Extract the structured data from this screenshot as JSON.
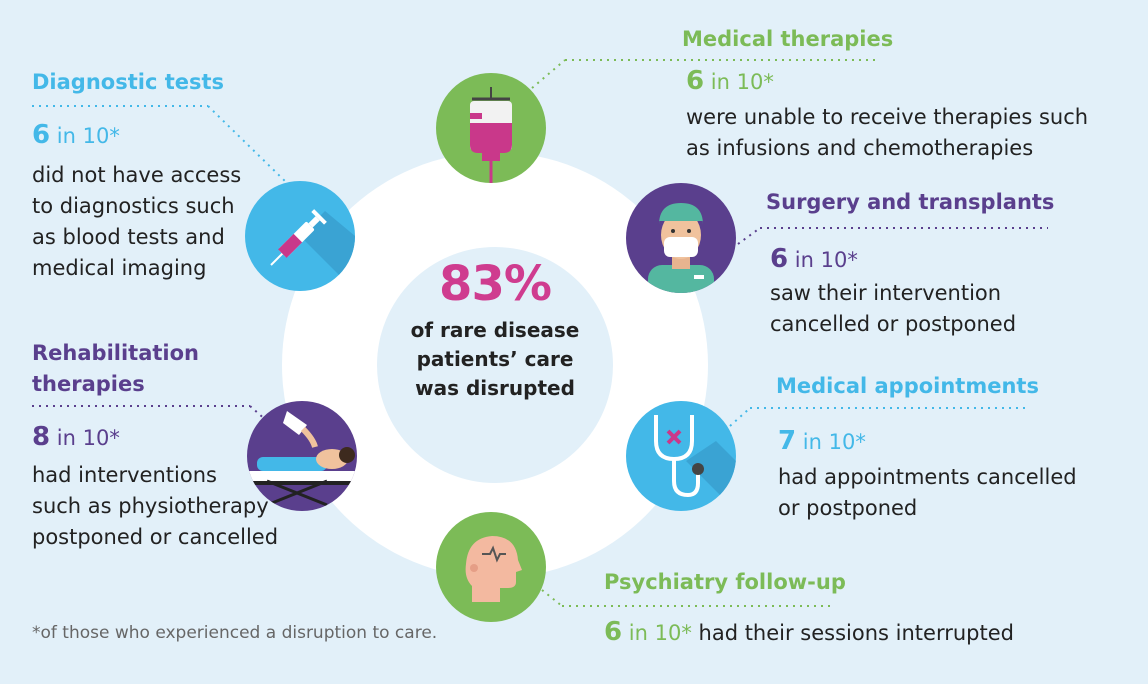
{
  "center": {
    "percent": "83%",
    "line1": "of rare disease",
    "line2": "patients’ care",
    "line3": "was disrupted"
  },
  "sections": {
    "diagnostic": {
      "title": "Diagnostic tests",
      "num": "6",
      "suffix": "in 10*",
      "lines": [
        "did not have access",
        "to diagnostics such",
        "as blood tests and",
        "medical imaging"
      ]
    },
    "medical_therapies": {
      "title": "Medical therapies",
      "num": "6",
      "suffix": "in 10*",
      "lines": [
        "were unable to receive therapies such",
        "as infusions and chemotherapies"
      ]
    },
    "surgery": {
      "title": "Surgery and transplants",
      "num": "6",
      "suffix": "in 10*",
      "lines": [
        "saw their intervention",
        "cancelled or postponed"
      ]
    },
    "rehabilitation": {
      "title_line1": "Rehabilitation",
      "title_line2": "therapies",
      "num": "8",
      "suffix": "in 10*",
      "lines": [
        "had interventions",
        "such as physiotherapy",
        "postponed or cancelled"
      ]
    },
    "appointments": {
      "title": "Medical appointments",
      "num": "7",
      "suffix": "in 10*",
      "lines": [
        "had appointments cancelled",
        "or postponed"
      ]
    },
    "psychiatry": {
      "title": "Psychiatry follow-up",
      "num": "6",
      "suffix": "in 10*",
      "text": "had their sessions interrupted"
    }
  },
  "footnote": "*of those who experienced a disruption to care.",
  "icons": {
    "iv_bag": "iv-drip-icon",
    "syringe": "syringe-icon",
    "doctor": "surgeon-icon",
    "physio": "physiotherapy-icon",
    "stethoscope": "stethoscope-icon",
    "head": "head-brain-icon"
  },
  "colors": {
    "background": "#e2f0f9",
    "blue": "#43b8e8",
    "green": "#7cbb57",
    "purple": "#5a3f8d",
    "pink": "#cf3c8f"
  }
}
